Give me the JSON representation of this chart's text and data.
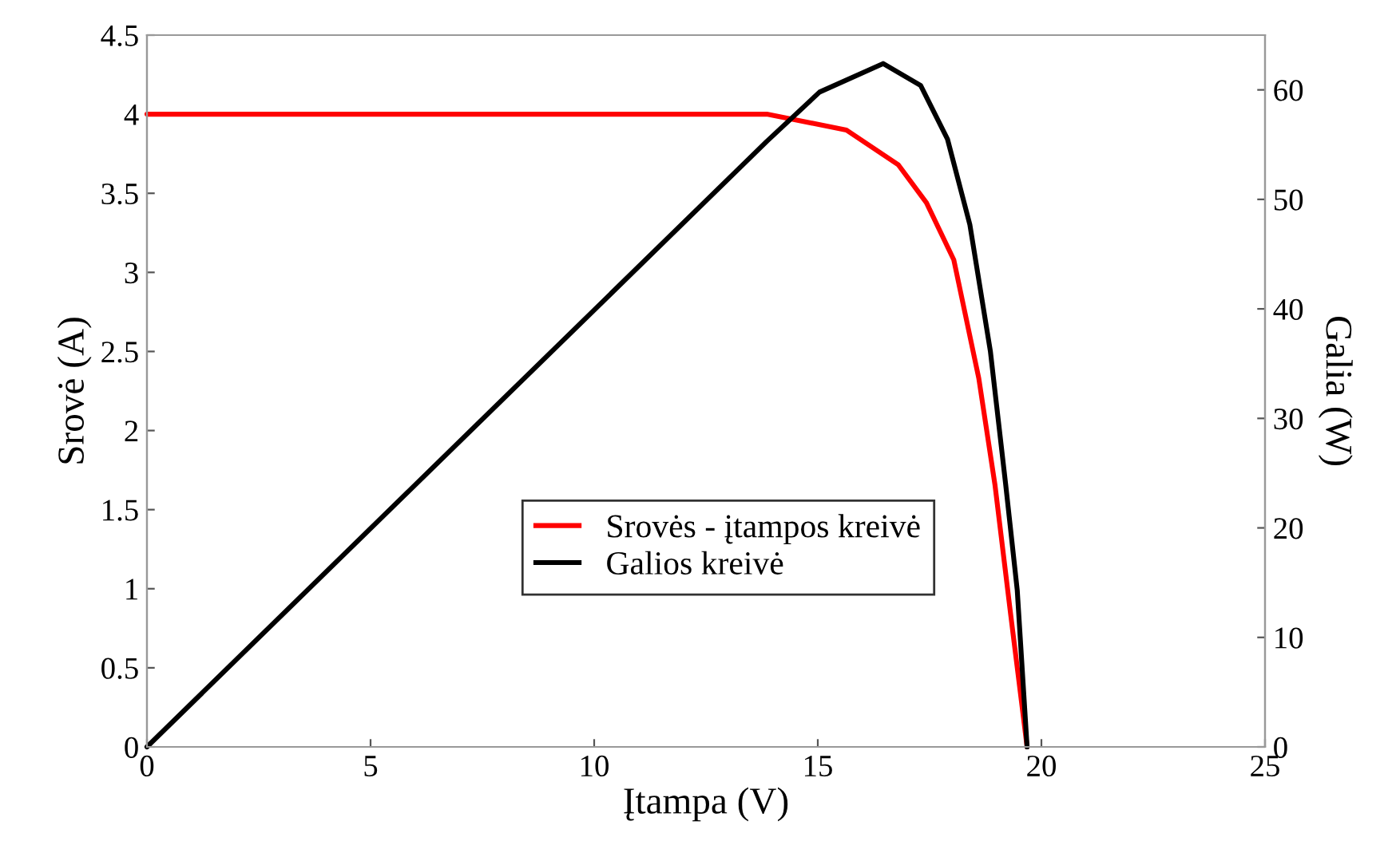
{
  "chart_data": {
    "type": "line",
    "xlabel": "Įtampa (V)",
    "ylabel": "Srovė (A)",
    "y2label": "Galia (W)",
    "xlim": [
      0,
      25
    ],
    "xticks": [
      0,
      5,
      10,
      15,
      20,
      25
    ],
    "ylim": [
      0,
      4.5
    ],
    "yticks": [
      0,
      0.5,
      1,
      1.5,
      2,
      2.5,
      3,
      3.5,
      4,
      4.5
    ],
    "y2lim": [
      0,
      65
    ],
    "y2ticks": [
      0,
      10,
      20,
      30,
      40,
      50,
      60
    ],
    "grid": false,
    "legend": "center",
    "marker": "none",
    "line_style": "solid",
    "series": [
      {
        "name": "Srovės - įtampos kreivė",
        "color": "#ff0000",
        "x": [
          0,
          5,
          10,
          13.86,
          15.64,
          16.8,
          17.43,
          18.04,
          18.6,
          18.96,
          19.32,
          19.68
        ],
        "values": [
          4.0,
          4.0,
          4.0,
          4.0,
          3.9,
          3.68,
          3.44,
          3.08,
          2.33,
          1.66,
          0.82,
          0
        ]
      },
      {
        "name": "Galios kreivė",
        "color": "#000000",
        "axis": "y2",
        "x": [
          0,
          13.86,
          15.04,
          16.46,
          17.3,
          17.9,
          18.4,
          18.86,
          19.2,
          19.46,
          19.68
        ],
        "values": [
          0,
          55.3,
          59.8,
          62.4,
          60.4,
          55.5,
          47.7,
          36.1,
          24.0,
          14.3,
          0
        ]
      }
    ]
  }
}
